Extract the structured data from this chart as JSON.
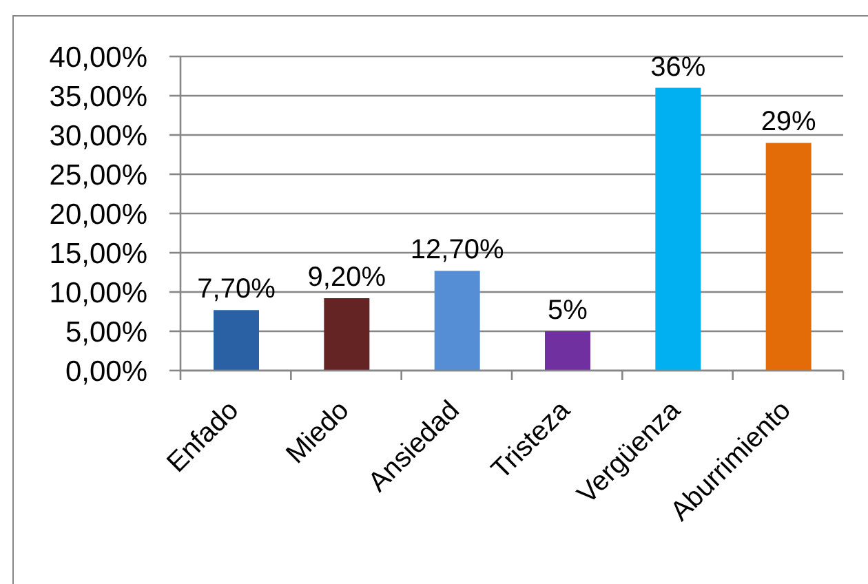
{
  "chart_data": {
    "type": "bar",
    "categories": [
      "Enfado",
      "Miedo",
      "Ansiedad",
      "Tristeza",
      "Vergüenza",
      "Aburrimiento"
    ],
    "values": [
      7.7,
      9.2,
      12.7,
      5,
      36,
      29
    ],
    "colors": [
      "#2a60a4",
      "#632423",
      "#558ed5",
      "#7030a0",
      "#00b0f0",
      "#e36c09"
    ],
    "value_labels": [
      "7,70%",
      "9,20%",
      "12,70%",
      "5%",
      "36%",
      "29%"
    ],
    "ylim": [
      0,
      40
    ],
    "yticks": [
      {
        "value": 0,
        "label": "0,00%"
      },
      {
        "value": 5,
        "label": "5,00%"
      },
      {
        "value": 10,
        "label": "10,00%"
      },
      {
        "value": 15,
        "label": "15,00%"
      },
      {
        "value": 20,
        "label": "20,00%"
      },
      {
        "value": 25,
        "label": "25,00%"
      },
      {
        "value": 30,
        "label": "30,00%"
      },
      {
        "value": 35,
        "label": "35,00%"
      },
      {
        "value": 40,
        "label": "40,00%"
      }
    ],
    "grid": "y"
  }
}
